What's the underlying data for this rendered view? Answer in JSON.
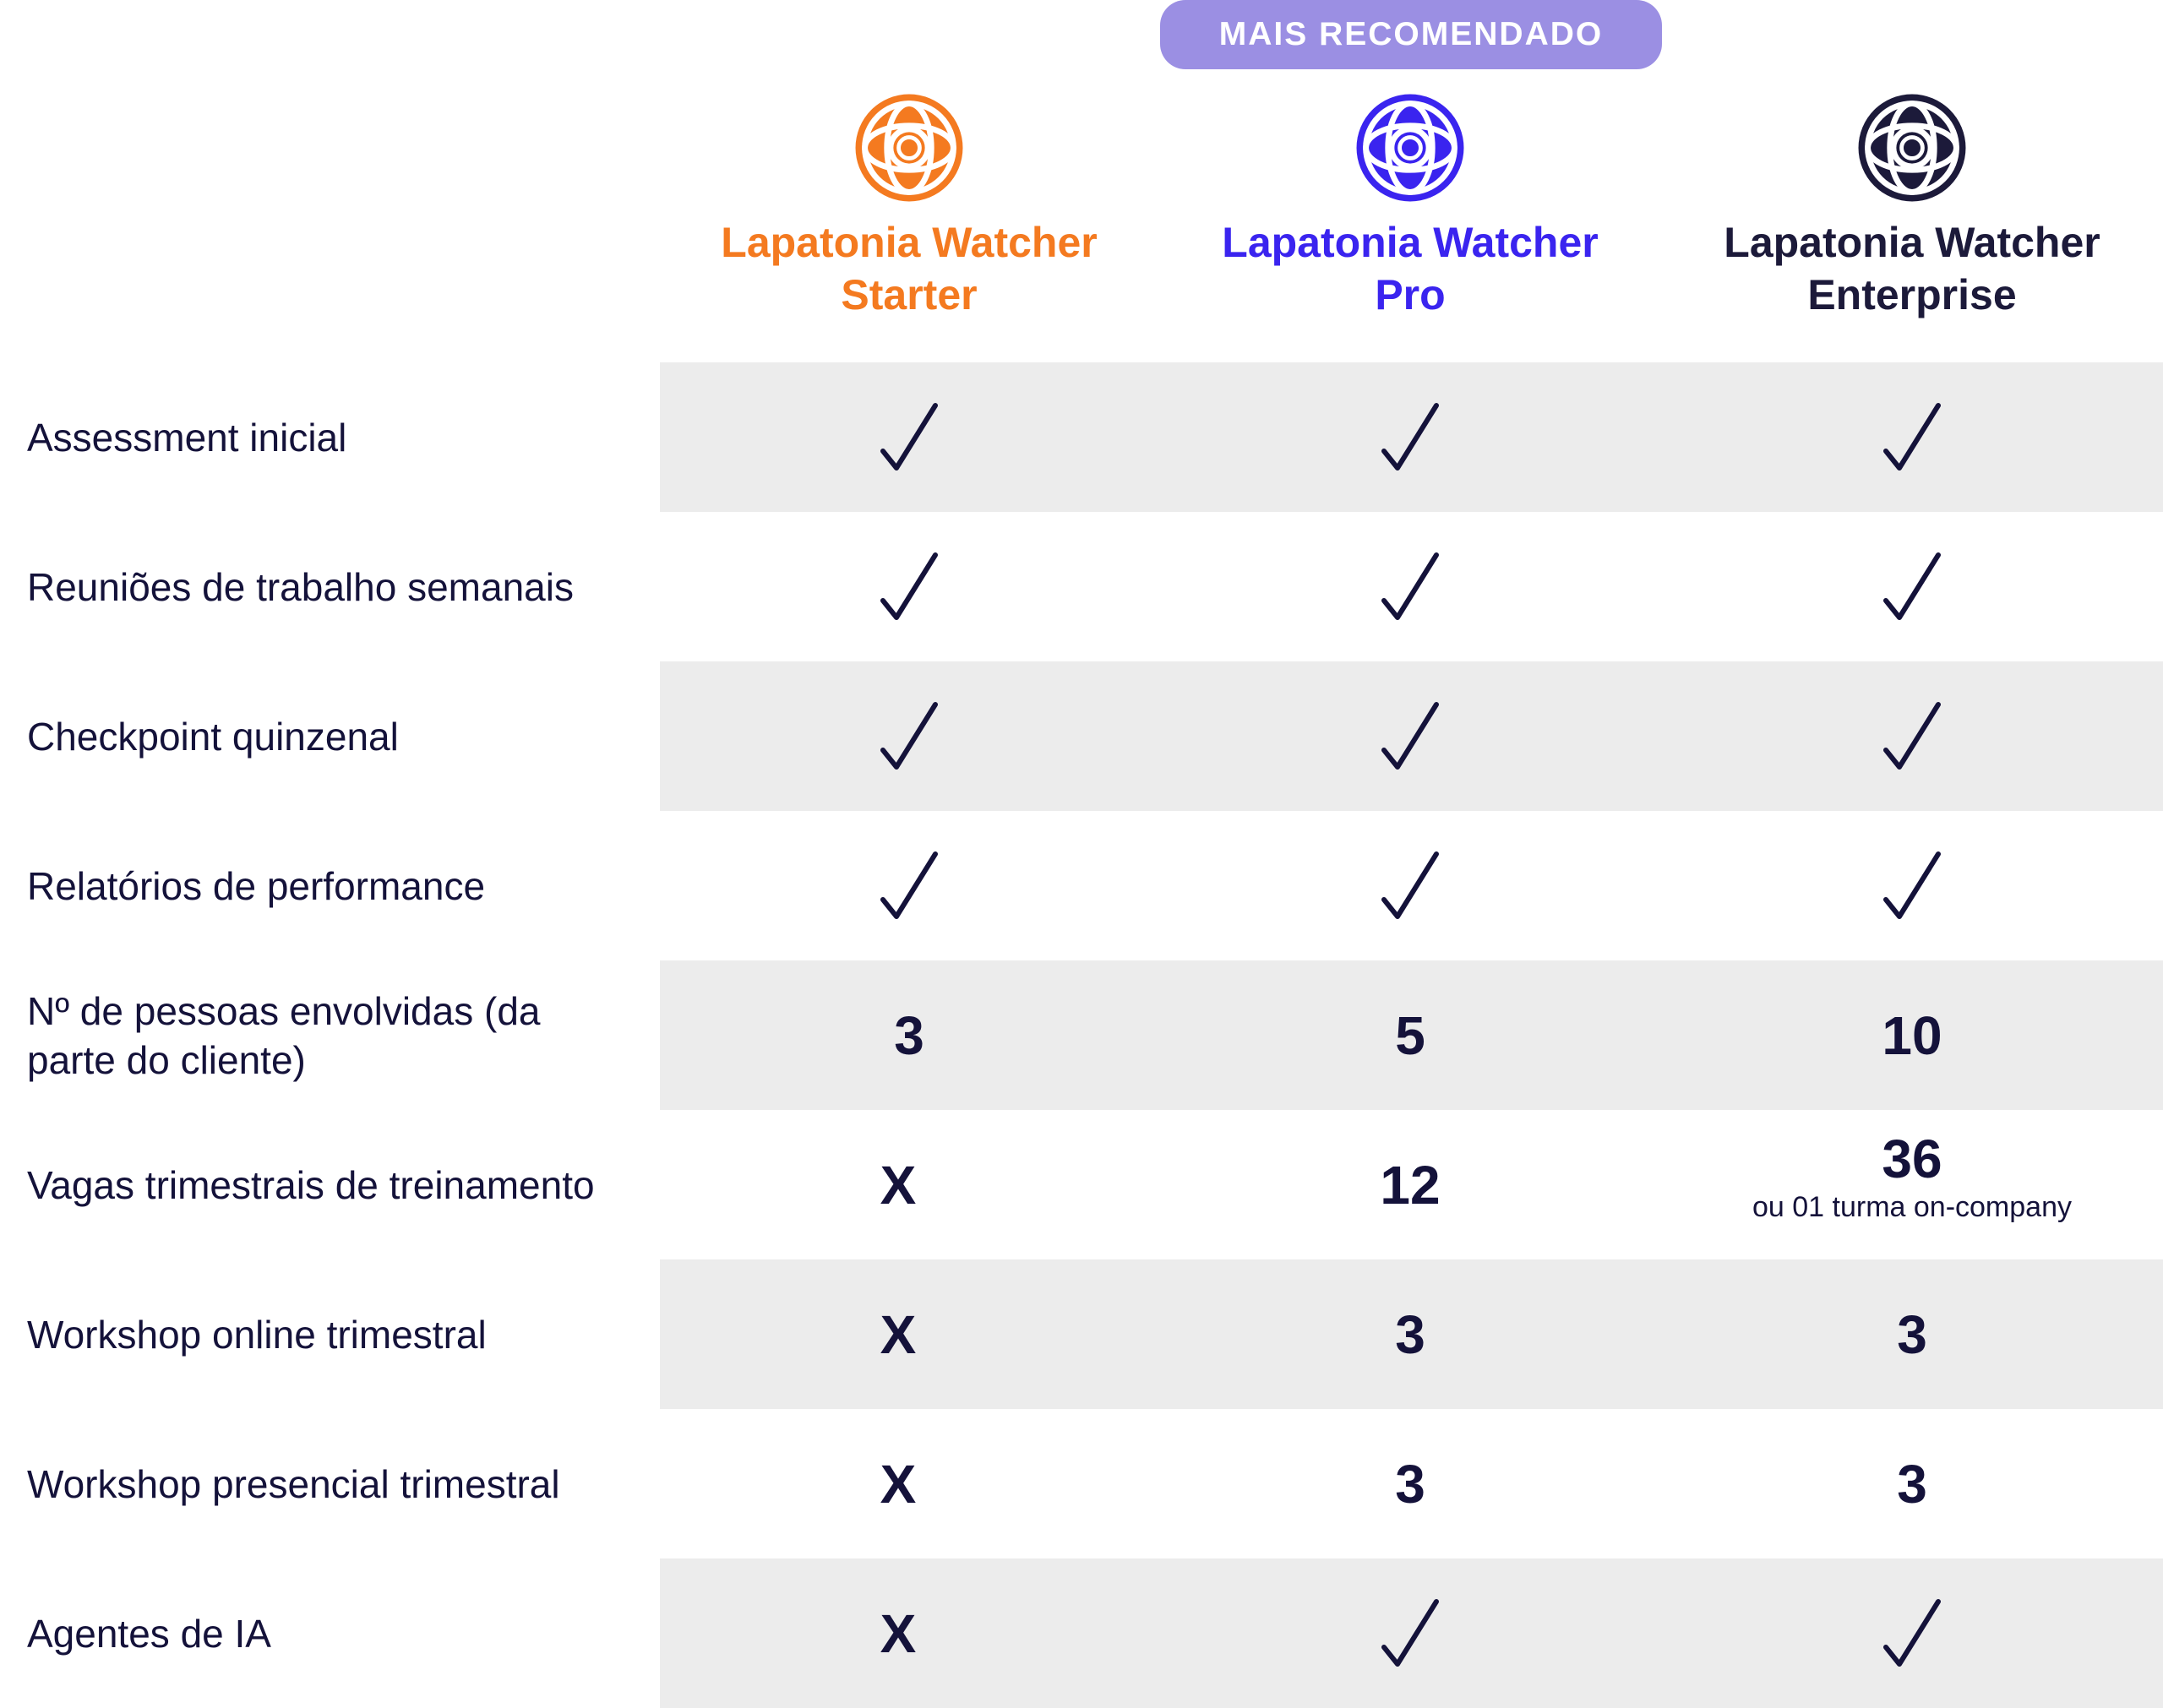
{
  "badge": "MAIS RECOMENDADO",
  "plans": [
    {
      "line1": "Lapatonia Watcher",
      "line2": "Starter",
      "color": "#f47a20",
      "icon": "globe-icon"
    },
    {
      "line1": "Lapatonia Watcher",
      "line2": "Pro",
      "color": "#3a24ef",
      "icon": "globe-icon"
    },
    {
      "line1": "Lapatonia Watcher",
      "line2": "Enterprise",
      "color": "#1c1a3a",
      "icon": "globe-icon"
    }
  ],
  "rows": [
    {
      "label": "Assessment inicial",
      "cells": [
        {
          "check": true
        },
        {
          "check": true
        },
        {
          "check": true
        }
      ]
    },
    {
      "label": "Reuniões de trabalho semanais",
      "cells": [
        {
          "check": true
        },
        {
          "check": true
        },
        {
          "check": true
        }
      ]
    },
    {
      "label": "Checkpoint quinzenal",
      "cells": [
        {
          "check": true
        },
        {
          "check": true
        },
        {
          "check": true
        }
      ]
    },
    {
      "label": "Relatórios de performance",
      "cells": [
        {
          "check": true
        },
        {
          "check": true
        },
        {
          "check": true
        }
      ]
    },
    {
      "label": "Nº de pessoas envolvidas (da parte do cliente)",
      "cells": [
        {
          "value": "3"
        },
        {
          "value": "5"
        },
        {
          "value": "10"
        }
      ]
    },
    {
      "label": "Vagas trimestrais de  treinamento",
      "cells": [
        {
          "value": "X"
        },
        {
          "value": "12"
        },
        {
          "value": "36",
          "note": "ou 01 turma on-company"
        }
      ]
    },
    {
      "label": "Workshop online trimestral",
      "cells": [
        {
          "value": "X"
        },
        {
          "value": "3"
        },
        {
          "value": "3"
        }
      ]
    },
    {
      "label": "Workshop presencial trimestral",
      "cells": [
        {
          "value": "X"
        },
        {
          "value": "3"
        },
        {
          "value": "3"
        }
      ]
    },
    {
      "label": "Agentes de IA",
      "cells": [
        {
          "value": "X"
        },
        {
          "check": true
        },
        {
          "check": true
        }
      ]
    }
  ],
  "colors": {
    "band": "#ececec",
    "badge": "#9b8fe3",
    "check": "#14123a"
  }
}
